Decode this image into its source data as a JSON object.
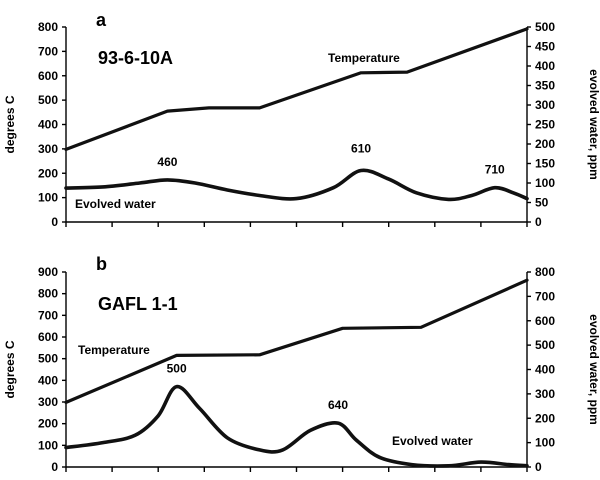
{
  "chart_data": [
    {
      "type": "line",
      "panel_label": "a",
      "sample": "93-6-10A",
      "ylabel": "degrees C",
      "y2label": "evolved water, ppm",
      "ylim": [
        0,
        800
      ],
      "y2lim": [
        0,
        500
      ],
      "yticks": [
        "0",
        "100",
        "200",
        "300",
        "400",
        "500",
        "600",
        "700",
        "800"
      ],
      "y2ticks": [
        "0",
        "50",
        "100",
        "150",
        "200",
        "250",
        "300",
        "350",
        "400",
        "450",
        "500"
      ],
      "xlim": [
        0,
        10
      ],
      "series": [
        {
          "name": "Temperature",
          "axis": "left",
          "x": [
            0,
            2.2,
            3.1,
            4.2,
            6.4,
            7.4,
            10
          ],
          "y": [
            298,
            455,
            468,
            468,
            612,
            615,
            792
          ]
        },
        {
          "name": "Evolved water",
          "axis": "right",
          "x": [
            0,
            0.8,
            1.6,
            2.2,
            2.8,
            3.5,
            4.2,
            5.0,
            5.8,
            6.4,
            7.0,
            7.6,
            8.3,
            8.8,
            9.3,
            9.7,
            10
          ],
          "y": [
            87,
            90,
            100,
            108,
            100,
            82,
            68,
            60,
            88,
            132,
            110,
            75,
            58,
            68,
            88,
            75,
            60
          ]
        }
      ],
      "annotations": [
        {
          "text": "460",
          "x": 2.2
        },
        {
          "text": "610",
          "x": 6.4
        },
        {
          "text": "710",
          "x": 9.3
        }
      ]
    },
    {
      "type": "line",
      "panel_label": "b",
      "sample": "GAFL 1-1",
      "ylabel": "degrees C",
      "y2label": "evolved water, ppm",
      "ylim": [
        0,
        900
      ],
      "y2lim": [
        0,
        800
      ],
      "yticks": [
        "0",
        "100",
        "200",
        "300",
        "400",
        "500",
        "600",
        "700",
        "800",
        "900"
      ],
      "y2ticks": [
        "0",
        "100",
        "200",
        "300",
        "400",
        "500",
        "600",
        "700",
        "800"
      ],
      "xlim": [
        0,
        10
      ],
      "series": [
        {
          "name": "Temperature",
          "axis": "left",
          "x": [
            0,
            2.4,
            4.2,
            6.0,
            7.7,
            10
          ],
          "y": [
            298,
            515,
            518,
            640,
            645,
            862
          ]
        },
        {
          "name": "Evolved water",
          "axis": "right",
          "x": [
            0,
            0.8,
            1.5,
            2.0,
            2.4,
            2.9,
            3.5,
            4.2,
            4.7,
            5.3,
            5.9,
            6.3,
            6.8,
            7.5,
            8.3,
            9.0,
            9.6,
            10
          ],
          "y": [
            80,
            100,
            130,
            210,
            330,
            240,
            120,
            70,
            70,
            150,
            180,
            110,
            40,
            10,
            5,
            20,
            10,
            5
          ]
        }
      ],
      "annotations": [
        {
          "text": "500",
          "x": 2.4
        },
        {
          "text": "640",
          "x": 5.9
        }
      ]
    }
  ]
}
